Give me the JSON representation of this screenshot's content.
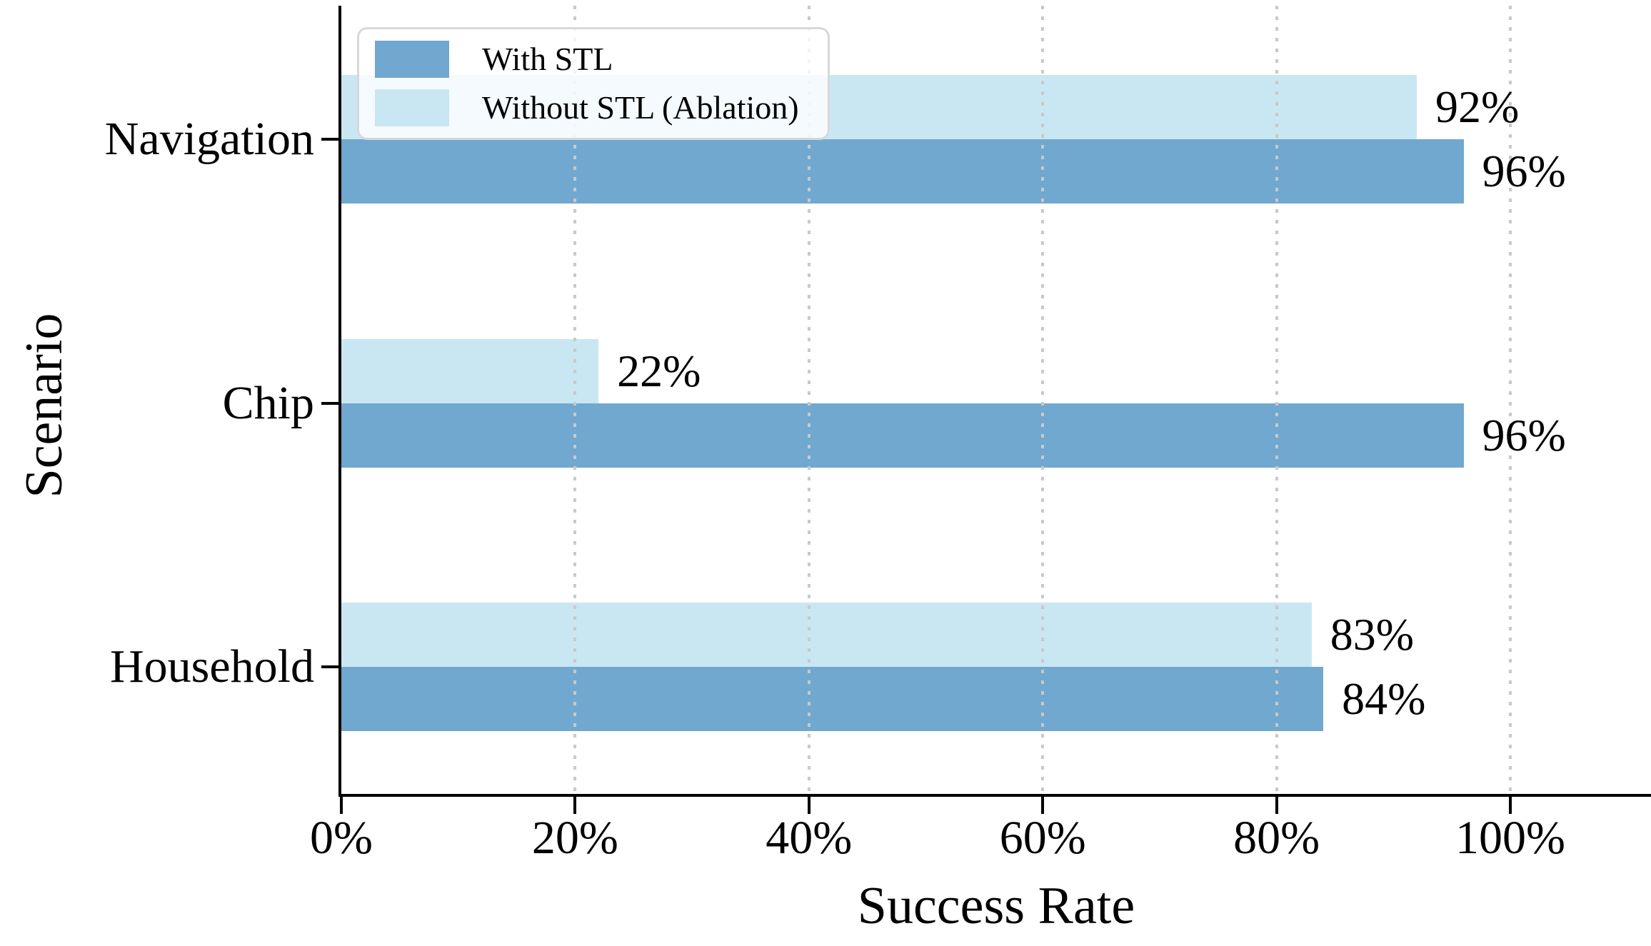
{
  "chart_data": {
    "type": "bar",
    "orientation": "horizontal",
    "title": "",
    "xlabel": "Success Rate",
    "ylabel": "Scenario",
    "categories": [
      "Navigation",
      "Chip",
      "Household"
    ],
    "series": [
      {
        "name": "With STL",
        "color": "#70a8cf",
        "values": [
          96,
          96,
          84
        ],
        "value_labels": [
          "96%",
          "96%",
          "84%"
        ]
      },
      {
        "name": "Without STL (Ablation)",
        "color": "#c9e7f2",
        "values": [
          92,
          22,
          83
        ],
        "value_labels": [
          "92%",
          "22%",
          "83%"
        ]
      }
    ],
    "x_ticks": [
      {
        "value": 0,
        "label": "0%"
      },
      {
        "value": 20,
        "label": "20%"
      },
      {
        "value": 40,
        "label": "40%"
      },
      {
        "value": 60,
        "label": "60%"
      },
      {
        "value": 80,
        "label": "80%"
      },
      {
        "value": 100,
        "label": "100%"
      }
    ],
    "xlim": [
      0,
      112
    ],
    "grid": {
      "axis": "x",
      "style": "dotted",
      "color": "#c9c9c9",
      "values": [
        20,
        40,
        60,
        80,
        100
      ],
      "above_bars": true
    },
    "legend": {
      "position": "upper-left",
      "entries": [
        "With STL",
        "Without STL (Ablation)"
      ]
    }
  },
  "colors": {
    "background": "#ffffff",
    "spine": "#000000",
    "text": "#000000",
    "legend_border": "#d8d8d8"
  }
}
